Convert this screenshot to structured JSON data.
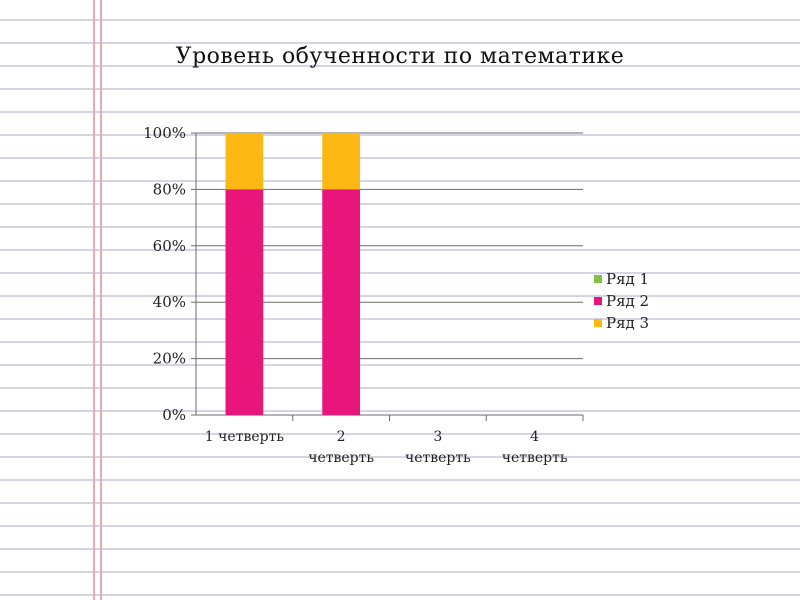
{
  "chart_data": {
    "type": "bar",
    "stacked": true,
    "title": "Уровень обученности по математике",
    "categories": [
      [
        "1 четверть"
      ],
      [
        "2",
        "четверть"
      ],
      [
        "3",
        "четверть"
      ],
      [
        "4",
        "четверть"
      ]
    ],
    "series": [
      {
        "name": "Ряд 1",
        "color": "#7dc242",
        "values": [
          0,
          0,
          0,
          0
        ]
      },
      {
        "name": "Ряд 2",
        "color": "#e8157a",
        "values": [
          80,
          80,
          0,
          0
        ]
      },
      {
        "name": "Ряд 3",
        "color": "#fdb813",
        "values": [
          20,
          20,
          0,
          0
        ]
      }
    ],
    "y_ticks": [
      "0%",
      "20%",
      "40%",
      "60%",
      "80%",
      "100%"
    ],
    "ylim": [
      0,
      100
    ],
    "grid": true,
    "legend_position": "right"
  }
}
